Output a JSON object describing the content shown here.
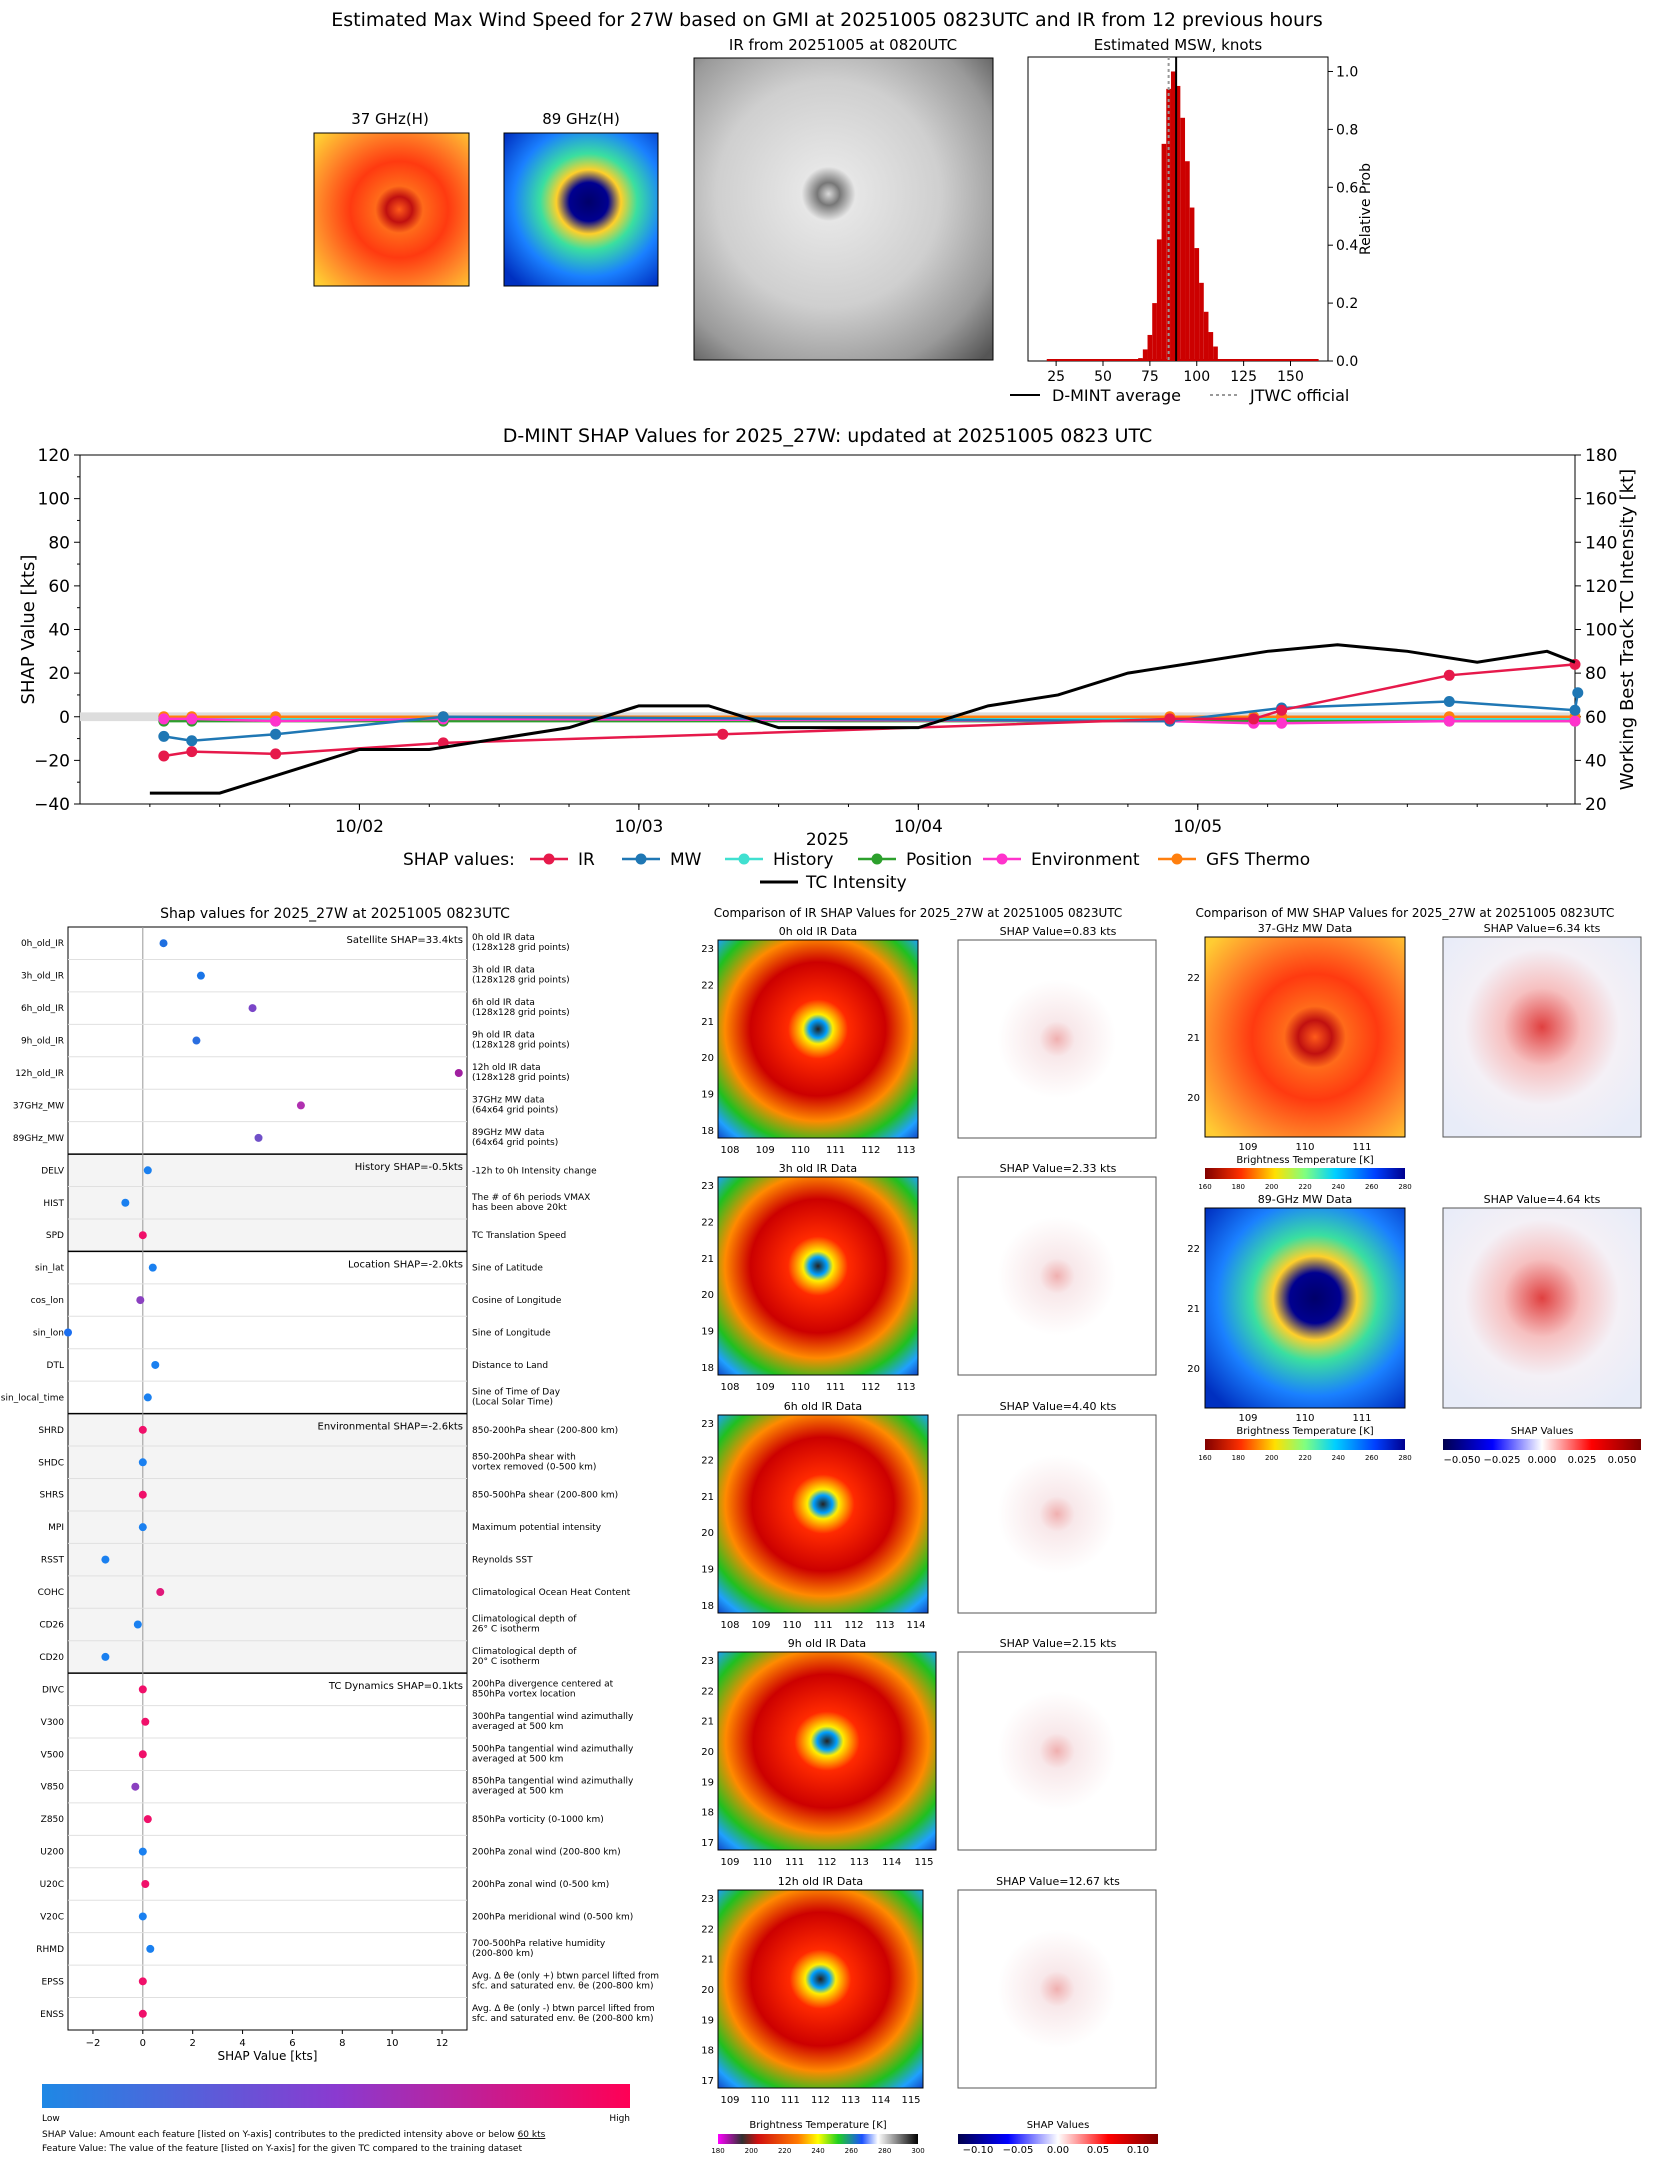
{
  "main_title": "Estimated Max Wind Speed for 27W based on GMI at 20251005 0823UTC and IR from 12 previous hours",
  "thumbs": {
    "ghz37": "37 GHz(H)",
    "ghz89": "89 GHz(H)",
    "ir": "IR from 20251005 at 0820UTC"
  },
  "hist": {
    "title": "Estimated MSW, knots",
    "ylabel": "Relative Prob",
    "xticks": [
      "25",
      "50",
      "75",
      "100",
      "125",
      "150"
    ],
    "yticks": [
      "0.0",
      "0.2",
      "0.4",
      "0.6",
      "0.8",
      "1.0"
    ],
    "legend_dmint": "D-MINT average",
    "legend_jtwc": "JTWC official",
    "bars_x": [
      70,
      72.5,
      75,
      77.5,
      80,
      82.5,
      85,
      87.5,
      90,
      92.5,
      95,
      97.5,
      100,
      102.5,
      105,
      107.5,
      110
    ],
    "bars_y": [
      0.01,
      0.04,
      0.09,
      0.2,
      0.42,
      0.75,
      0.94,
      1.0,
      0.95,
      0.84,
      0.69,
      0.53,
      0.39,
      0.27,
      0.17,
      0.1,
      0.05
    ],
    "dmint_avg": 89,
    "jtwc": 85,
    "color": "#cc0000"
  },
  "shap_ts": {
    "title": "D-MINT SHAP Values for 2025_27W: updated at 20251005 0823 UTC",
    "ylabel_left": "SHAP Value [kts]",
    "ylabel_right": "Working Best Track TC Intensity [kt]",
    "xlabel": "2025",
    "xticks": [
      "10/02",
      "10/03",
      "10/04",
      "10/05"
    ],
    "yticks_left": [
      "-40",
      "-20",
      "0",
      "20",
      "40",
      "60",
      "80",
      "100",
      "120"
    ],
    "yticks_right": [
      "20",
      "40",
      "60",
      "80",
      "100",
      "120",
      "140",
      "160",
      "180"
    ],
    "legend_prefix": "SHAP values:",
    "legend": [
      "IR",
      "MW",
      "History",
      "Position",
      "Environment",
      "GFS Thermo",
      "TC Intensity"
    ],
    "colors": [
      "#e6194b",
      "#1f77b4",
      "#40e0d0",
      "#2ca02c",
      "#ff33cc",
      "#ff7f0e",
      "#000000"
    ]
  },
  "chart_data": [
    {
      "type": "bar",
      "title": "Estimated MSW, knots",
      "ylabel": "Relative Prob",
      "xlim": [
        10,
        170
      ],
      "ylim": [
        0,
        1.05
      ],
      "x": [
        70,
        72.5,
        75,
        77.5,
        80,
        82.5,
        85,
        87.5,
        90,
        92.5,
        95,
        97.5,
        100,
        102.5,
        105,
        107.5,
        110
      ],
      "values": [
        0.01,
        0.04,
        0.09,
        0.2,
        0.42,
        0.75,
        0.94,
        1.0,
        0.95,
        0.84,
        0.69,
        0.53,
        0.39,
        0.27,
        0.17,
        0.1,
        0.05
      ],
      "vlines": {
        "D-MINT average": 89,
        "JTWC official": 85
      }
    },
    {
      "type": "line",
      "title": "D-MINT SHAP Values for 2025_27W: updated at 20251005 0823 UTC",
      "xlabel": "2025",
      "x_unit": "days since 10/01 00UTC",
      "series": [
        {
          "name": "IR",
          "x": [
            0.3,
            0.4,
            0.7,
            1.3,
            2.3,
            3.9,
            4.2,
            4.3,
            4.9,
            5.35
          ],
          "values": [
            -18,
            -16,
            -17,
            -12,
            -8,
            -1,
            -1,
            3,
            19,
            24
          ]
        },
        {
          "name": "MW",
          "x": [
            0.3,
            0.4,
            0.7,
            1.3,
            3.9,
            4.3,
            4.9,
            5.35,
            5.36
          ],
          "values": [
            -9,
            -11,
            -8,
            0,
            -2,
            4,
            7,
            3,
            11
          ]
        },
        {
          "name": "History",
          "x": [
            0.3,
            0.4,
            0.7,
            1.3,
            3.9,
            4.2,
            4.3,
            4.9,
            5.35
          ],
          "values": [
            -1,
            -1,
            -1,
            -1,
            -1,
            -1,
            -1,
            -1,
            -1
          ]
        },
        {
          "name": "Position",
          "x": [
            0.3,
            0.4,
            0.7,
            1.3,
            3.9,
            4.2,
            4.3,
            4.9,
            5.35
          ],
          "values": [
            -2,
            -2,
            -2,
            -2,
            -2,
            -2,
            -2,
            -2,
            -2
          ]
        },
        {
          "name": "Environment",
          "x": [
            0.3,
            0.4,
            0.7,
            1.3,
            3.9,
            4.2,
            4.3,
            4.9,
            5.35
          ],
          "values": [
            -1,
            -1,
            -2,
            -1,
            -2,
            -3,
            -3,
            -2,
            -2
          ]
        },
        {
          "name": "GFS Thermo",
          "x": [
            0.3,
            0.4,
            0.7,
            1.3,
            3.9,
            4.2,
            4.3,
            4.9,
            5.35
          ],
          "values": [
            0,
            0,
            0,
            0,
            0,
            0,
            0,
            0,
            0
          ]
        },
        {
          "name": "TC Intensity",
          "x": [
            0.25,
            0.5,
            0.75,
            1.0,
            1.25,
            1.5,
            1.75,
            2.0,
            2.25,
            2.5,
            2.75,
            3.0,
            3.25,
            3.5,
            3.75,
            4.0,
            4.25,
            4.5,
            4.75,
            5.0,
            5.25,
            5.35
          ],
          "values": [
            25,
            25,
            35,
            45,
            45,
            50,
            55,
            65,
            65,
            55,
            55,
            55,
            65,
            70,
            80,
            85,
            90,
            93,
            90,
            85,
            90,
            85
          ]
        }
      ],
      "ylim_left": [
        -40,
        120
      ],
      "ylim_right": [
        20,
        180
      ]
    },
    {
      "type": "scatter",
      "title": "Shap values for 2025_27W at 20251005 0823UTC",
      "xlabel": "SHAP Value [kts]",
      "xlim": [
        -3,
        13
      ],
      "features": [
        "0h_old_IR",
        "3h_old_IR",
        "6h_old_IR",
        "9h_old_IR",
        "12h_old_IR",
        "37GHz_MW",
        "89GHz_MW",
        "DELV",
        "HIST",
        "SPD",
        "sin_lat",
        "cos_lon",
        "sin_lon",
        "DTL",
        "sin_local_time",
        "SHRD",
        "SHDC",
        "SHRS",
        "MPI",
        "RSST",
        "COHC",
        "CD26",
        "CD20",
        "DIVC",
        "V300",
        "V500",
        "V850",
        "Z850",
        "U200",
        "U20C",
        "V20C",
        "RHMD",
        "EPSS",
        "ENSS"
      ],
      "values": [
        0.83,
        2.33,
        4.4,
        2.15,
        12.67,
        6.34,
        4.64,
        0.2,
        -0.7,
        0.0,
        0.4,
        -0.1,
        -3.0,
        0.5,
        0.2,
        0.0,
        0.0,
        0.0,
        0.0,
        -1.5,
        0.7,
        -0.2,
        -1.5,
        0.0,
        0.1,
        0.0,
        -0.3,
        0.2,
        0.0,
        0.1,
        0.0,
        0.3,
        0.0,
        0.0
      ]
    }
  ],
  "bees": {
    "title": "Shap values for 2025_27W at 20251005 0823UTC",
    "xlabel": "SHAP Value [kts]",
    "xticks": [
      "−2",
      "0",
      "2",
      "4",
      "6",
      "8",
      "10",
      "12"
    ],
    "colorbar_low": "Low",
    "colorbar_high": "High",
    "foot1": "SHAP Value: Amount each feature [listed on Y-axis] contributes to the predicted intensity above or below ",
    "foot1_ul": "60 kts",
    "foot2": "Feature Value: The value of the feature [listed on Y-axis] for the given TC compared to the training dataset",
    "groups": [
      {
        "label": "Satellite SHAP=33.4kts",
        "start": 0,
        "count": 7
      },
      {
        "label": "History SHAP=-0.5kts",
        "start": 7,
        "count": 3
      },
      {
        "label": "Location SHAP=-2.0kts",
        "start": 10,
        "count": 5
      },
      {
        "label": "Environmental SHAP=-2.6kts",
        "start": 15,
        "count": 8
      },
      {
        "label": "TC Dynamics SHAP=0.1kts",
        "start": 23,
        "count": 11
      }
    ],
    "features": [
      {
        "name": "0h_old_IR",
        "desc": [
          "0h old IR data",
          "(128x128 grid points)"
        ],
        "val": 0.83,
        "color": "#1f6fe0"
      },
      {
        "name": "3h_old_IR",
        "desc": [
          "3h old IR data",
          "(128x128 grid points)"
        ],
        "val": 2.33,
        "color": "#1a75e8"
      },
      {
        "name": "6h_old_IR",
        "desc": [
          "6h old IR data",
          "(128x128 grid points)"
        ],
        "val": 4.4,
        "color": "#7a45c8"
      },
      {
        "name": "9h_old_IR",
        "desc": [
          "9h old IR data",
          "(128x128 grid points)"
        ],
        "val": 2.15,
        "color": "#2a6ee0"
      },
      {
        "name": "12h_old_IR",
        "desc": [
          "12h old IR data",
          "(128x128 grid points)"
        ],
        "val": 12.67,
        "color": "#a020a0"
      },
      {
        "name": "37GHz_MW",
        "desc": [
          "37GHz MW data",
          "(64x64 grid points)"
        ],
        "val": 6.34,
        "color": "#b030b0"
      },
      {
        "name": "89GHz_MW",
        "desc": [
          "89GHz MW data",
          "(64x64 grid points)"
        ],
        "val": 4.64,
        "color": "#7050c8"
      },
      {
        "name": "DELV",
        "desc": [
          "-12h to 0h Intensity change"
        ],
        "val": 0.2,
        "color": "#1a80f0"
      },
      {
        "name": "HIST",
        "desc": [
          "The # of 6h periods VMAX",
          "has been above 20kt"
        ],
        "val": -0.7,
        "color": "#1a80f0"
      },
      {
        "name": "SPD",
        "desc": [
          "TC Translation Speed"
        ],
        "val": 0.0,
        "color": "#f0106a"
      },
      {
        "name": "sin_lat",
        "desc": [
          "Sine of Latitude"
        ],
        "val": 0.4,
        "color": "#1a80f0"
      },
      {
        "name": "cos_lon",
        "desc": [
          "Cosine of Longitude"
        ],
        "val": -0.1,
        "color": "#8a40c0"
      },
      {
        "name": "sin_lon",
        "desc": [
          "Sine of Longitude"
        ],
        "val": -3.0,
        "color": "#1a6ef0"
      },
      {
        "name": "DTL",
        "desc": [
          "Distance to Land"
        ],
        "val": 0.5,
        "color": "#1a80f0"
      },
      {
        "name": "sin_local_time",
        "desc": [
          "Sine of Time of Day",
          "(Local Solar Time)"
        ],
        "val": 0.2,
        "color": "#1a80f0"
      },
      {
        "name": "SHRD",
        "desc": [
          "850-200hPa shear (200-800 km)"
        ],
        "val": 0.0,
        "color": "#f0106a"
      },
      {
        "name": "SHDC",
        "desc": [
          "850-200hPa shear with",
          "vortex removed (0-500 km)"
        ],
        "val": 0.0,
        "color": "#1a80f0"
      },
      {
        "name": "SHRS",
        "desc": [
          "850-500hPa shear (200-800 km)"
        ],
        "val": 0.0,
        "color": "#f0106a"
      },
      {
        "name": "MPI",
        "desc": [
          "Maximum potential intensity"
        ],
        "val": 0.0,
        "color": "#1a80f0"
      },
      {
        "name": "RSST",
        "desc": [
          "Reynolds SST"
        ],
        "val": -1.5,
        "color": "#1a80f0"
      },
      {
        "name": "COHC",
        "desc": [
          "Climatological Ocean Heat Content"
        ],
        "val": 0.7,
        "color": "#e0187a"
      },
      {
        "name": "CD26",
        "desc": [
          "Climatological depth of",
          "26° C isotherm"
        ],
        "val": -0.2,
        "color": "#1a80f0"
      },
      {
        "name": "CD20",
        "desc": [
          "Climatological depth of",
          "20° C isotherm"
        ],
        "val": -1.5,
        "color": "#1a80f0"
      },
      {
        "name": "DIVC",
        "desc": [
          "200hPa divergence centered at",
          "850hPa vortex location"
        ],
        "val": 0.0,
        "color": "#f0106a"
      },
      {
        "name": "V300",
        "desc": [
          "300hPa tangential wind azimuthally",
          "averaged at 500 km"
        ],
        "val": 0.1,
        "color": "#f0106a"
      },
      {
        "name": "V500",
        "desc": [
          "500hPa tangential wind azimuthally",
          "averaged at 500 km"
        ],
        "val": 0.0,
        "color": "#f0106a"
      },
      {
        "name": "V850",
        "desc": [
          "850hPa tangential wind azimuthally",
          "averaged at 500 km"
        ],
        "val": -0.3,
        "color": "#8a40c0"
      },
      {
        "name": "Z850",
        "desc": [
          "850hPa vorticity (0-1000 km)"
        ],
        "val": 0.2,
        "color": "#f0106a"
      },
      {
        "name": "U200",
        "desc": [
          "200hPa zonal wind (200-800 km)"
        ],
        "val": 0.0,
        "color": "#1a80f0"
      },
      {
        "name": "U20C",
        "desc": [
          "200hPa zonal wind (0-500 km)"
        ],
        "val": 0.1,
        "color": "#f0106a"
      },
      {
        "name": "V20C",
        "desc": [
          "200hPa meridional wind (0-500 km)"
        ],
        "val": 0.0,
        "color": "#1a80f0"
      },
      {
        "name": "RHMD",
        "desc": [
          "700-500hPa relative humidity",
          "(200-800 km)"
        ],
        "val": 0.3,
        "color": "#1a80f0"
      },
      {
        "name": "EPSS",
        "desc": [
          "Avg. Δ θe (only +) btwn parcel lifted from",
          "sfc. and saturated env. θe (200-800 km)"
        ],
        "val": 0.0,
        "color": "#f0106a"
      },
      {
        "name": "ENSS",
        "desc": [
          "Avg. Δ θe (only -) btwn parcel lifted from",
          "sfc. and saturated env. θe (200-800 km)"
        ],
        "val": 0.0,
        "color": "#f0106a"
      }
    ]
  },
  "ir_cmp": {
    "title": "Comparison of IR SHAP Values for 2025_27W at 20251005 0823UTC",
    "rows": [
      {
        "label": "0h old IR Data",
        "shap": "SHAP Value=0.83 kts",
        "yticks": [
          "18",
          "19",
          "20",
          "21",
          "22",
          "23"
        ],
        "xticks": [
          "108",
          "109",
          "110",
          "111",
          "112",
          "113"
        ]
      },
      {
        "label": "3h old IR Data",
        "shap": "SHAP Value=2.33 kts",
        "yticks": [
          "18",
          "19",
          "20",
          "21",
          "22",
          "23"
        ],
        "xticks": [
          "108",
          "109",
          "110",
          "111",
          "112",
          "113"
        ]
      },
      {
        "label": "6h old IR Data",
        "shap": "SHAP Value=4.40 kts",
        "yticks": [
          "18",
          "19",
          "20",
          "21",
          "22",
          "23"
        ],
        "xticks": [
          "108",
          "109",
          "110",
          "111",
          "112",
          "113",
          "114"
        ]
      },
      {
        "label": "9h old IR Data",
        "shap": "SHAP Value=2.15 kts",
        "yticks": [
          "17",
          "18",
          "19",
          "20",
          "21",
          "22",
          "23"
        ],
        "xticks": [
          "109",
          "110",
          "111",
          "112",
          "113",
          "114",
          "115"
        ]
      },
      {
        "label": "12h old IR Data",
        "shap": "SHAP Value=12.67 kts",
        "yticks": [
          "17",
          "18",
          "19",
          "20",
          "21",
          "22",
          "23"
        ],
        "xticks": [
          "109",
          "110",
          "111",
          "112",
          "113",
          "114",
          "115"
        ]
      }
    ],
    "cbar_label": "Brightness Temperature [K]",
    "cbar_ticks": [
      "180",
      "200",
      "220",
      "240",
      "260",
      "280",
      "300"
    ],
    "shap_cbar_label": "SHAP Values",
    "shap_cbar_ticks": [
      "−0.10",
      "−0.05",
      "0.00",
      "0.05",
      "0.10"
    ]
  },
  "mw_cmp": {
    "title": "Comparison of MW SHAP Values for 2025_27W at 20251005 0823UTC",
    "rows": [
      {
        "label": "37-GHz MW Data",
        "shap": "SHAP Value=6.34 kts",
        "yticks": [
          "20",
          "21",
          "22"
        ],
        "xticks": [
          "109",
          "110",
          "111"
        ]
      },
      {
        "label": "89-GHz MW Data",
        "shap": "SHAP Value=4.64 kts",
        "yticks": [
          "20",
          "21",
          "22"
        ],
        "xticks": [
          "109",
          "110",
          "111"
        ]
      }
    ],
    "cbar_label": "Brightness Temperature [K]",
    "cbar_ticks": [
      "160",
      "180",
      "200",
      "220",
      "240",
      "260",
      "280"
    ],
    "shap_cbar_label": "SHAP Values",
    "shap_cbar_ticks": [
      "−0.050",
      "−0.025",
      "0.000",
      "0.025",
      "0.050"
    ]
  }
}
